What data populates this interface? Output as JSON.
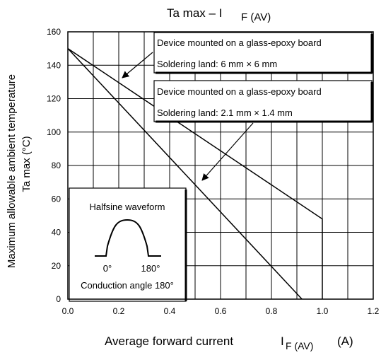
{
  "chart_data": {
    "type": "line",
    "title": "Ta max – I",
    "title_sub": "F (AV)",
    "xlabel": "Average forward current",
    "xlabel_symbol": "I",
    "xlabel_sub": "F (AV)",
    "xlabel_unit": "(A)",
    "ylabel_line1": "Maximum allowable ambient temperature",
    "ylabel_line2": "Ta max    (°C)",
    "xlim": [
      0,
      1.2
    ],
    "ylim": [
      0,
      160
    ],
    "x_ticks": [
      0.0,
      0.2,
      0.4,
      0.6,
      0.8,
      1.0,
      1.2
    ],
    "x_tick_labels": [
      "0.0",
      "0.2",
      "0.4",
      "0.6",
      "0.8",
      "1.0",
      "1.2"
    ],
    "y_ticks": [
      0,
      20,
      40,
      60,
      80,
      100,
      120,
      140,
      160
    ],
    "y_tick_labels": [
      "0",
      "20",
      "40",
      "60",
      "80",
      "100",
      "120",
      "140",
      "160"
    ],
    "grid": true,
    "series": [
      {
        "x": [
          0.0,
          1.0,
          1.0
        ],
        "y": [
          150,
          48,
          0
        ]
      },
      {
        "x": [
          0.0,
          0.92
        ],
        "y": [
          150,
          0
        ]
      }
    ],
    "annotations": [
      {
        "line1": "Device mounted on a glass-epoxy board",
        "line2": "Soldering land: 6 mm × 6 mm"
      },
      {
        "line1": "Device mounted on a glass-epoxy board",
        "line2": "Soldering land: 2.1 mm × 1.4 mm"
      }
    ],
    "inset": {
      "title": "Halfsine waveform",
      "label_start": "0°",
      "label_end": "180°",
      "caption": "Conduction angle 180°"
    }
  }
}
